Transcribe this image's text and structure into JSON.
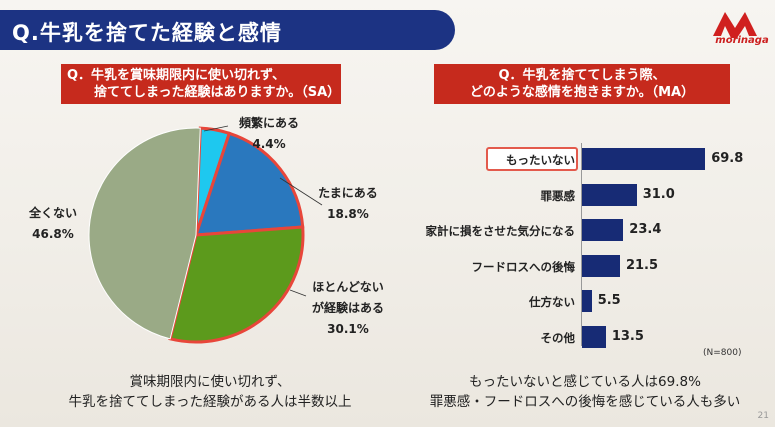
{
  "header": {
    "title": "Q.牛乳を捨てた経験と感情"
  },
  "logo": {
    "text": "morinaga"
  },
  "left_question": {
    "line1": "Q．牛乳を賞味期限内に使い切れず、",
    "line2": "捨ててしまった経験はありますか。（SA）"
  },
  "right_question": {
    "line1": "Q．牛乳を捨ててしまう際、",
    "line2": "どのような感情を抱きますか。（MA）"
  },
  "chart_data": [
    {
      "type": "pie",
      "categories": [
        "頻繁にある",
        "たまにある",
        "ほとんどないが経験はある",
        "全くない"
      ],
      "values": [
        4.4,
        18.8,
        30.1,
        46.8
      ],
      "colors": [
        "#1ec8ef",
        "#2a78be",
        "#5c9a1c",
        "#9aaa86"
      ],
      "highlight_color": "#e8463a",
      "labels": [
        {
          "lines": [
            "頻繁にある",
            "4.4%"
          ]
        },
        {
          "lines": [
            "たまにある",
            "18.8%"
          ]
        },
        {
          "lines": [
            "ほとんどない",
            "が経験はある",
            "30.1%"
          ]
        },
        {
          "lines": [
            "全くない",
            "46.8%"
          ]
        }
      ]
    },
    {
      "type": "bar",
      "orientation": "horizontal",
      "categories": [
        "もったいない",
        "罪悪感",
        "家計に損をさせた気分になる",
        "フードロスへの後悔",
        "仕方ない",
        "その他"
      ],
      "values": [
        69.8,
        31.0,
        23.4,
        21.5,
        5.5,
        13.5
      ],
      "value_labels": [
        "69.8",
        "31.0",
        "23.4",
        "21.5",
        "5.5",
        "13.5"
      ],
      "xlim": [
        0,
        100
      ],
      "bar_color": "#172b75",
      "note": "(N=800)"
    }
  ],
  "left_summary": {
    "line1": "賞味期限内に使い切れず、",
    "line2": "牛乳を捨ててしまった経験がある人は半数以上"
  },
  "right_summary": {
    "line1": "もったいないと感じている人は69.8%",
    "line2": "罪悪感・フードロスへの後悔を感じている人も多い"
  },
  "page_number": "21"
}
